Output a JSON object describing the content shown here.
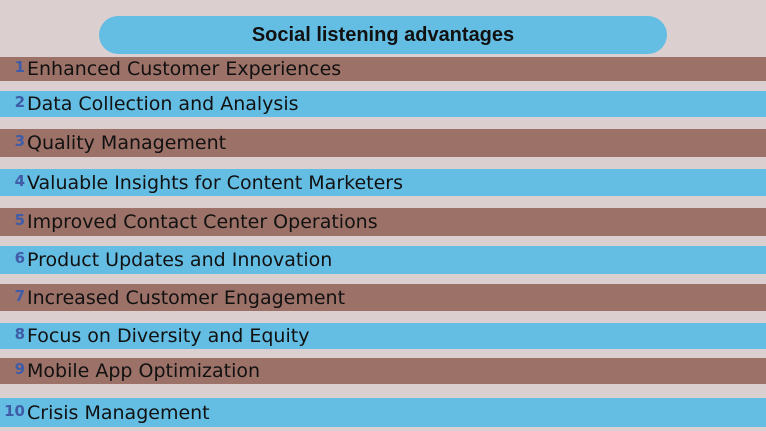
{
  "title": "Social listening advantages",
  "colors": {
    "background": "#dccfd0",
    "blue_band": "#64bde3",
    "brown_band": "#9c7168",
    "number": "#3f5ca8"
  },
  "items": [
    {
      "number": "1",
      "label": "Enhanced Customer Experiences",
      "color": "brown"
    },
    {
      "number": "2",
      "label": "Data Collection and Analysis",
      "color": "blue"
    },
    {
      "number": "3",
      "label": "Quality Management",
      "color": "brown"
    },
    {
      "number": "4",
      "label": "Valuable Insights for Content Marketers",
      "color": "blue"
    },
    {
      "number": "5",
      "label": "Improved Contact Center Operations",
      "color": "brown"
    },
    {
      "number": "6",
      "label": "Product Updates and Innovation",
      "color": "blue"
    },
    {
      "number": "7",
      "label": "Increased Customer Engagement",
      "color": "brown"
    },
    {
      "number": "8",
      "label": "Focus on Diversity and Equity",
      "color": "blue"
    },
    {
      "number": "9",
      "label": "Mobile App Optimization",
      "color": "brown"
    },
    {
      "number": "10",
      "label": "Crisis Management",
      "color": "blue"
    }
  ]
}
